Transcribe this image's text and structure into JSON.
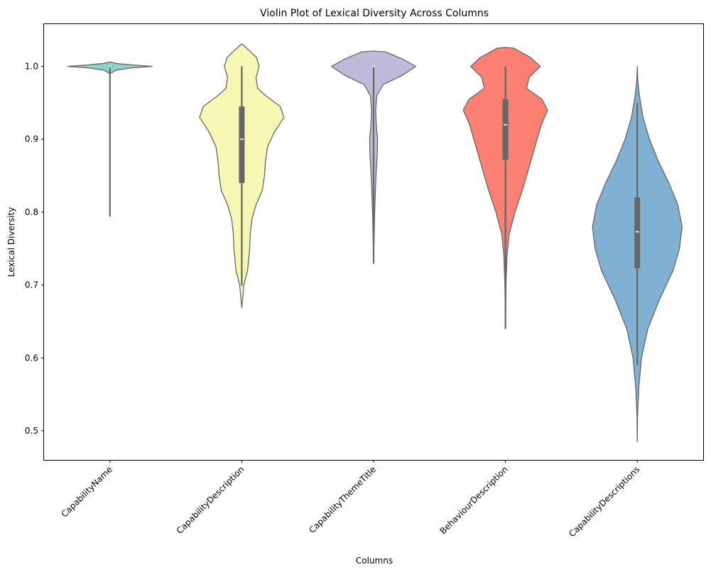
{
  "chart_data": {
    "type": "violin",
    "title": "Violin Plot of Lexical Diversity Across Columns",
    "xlabel": "Columns",
    "ylabel": "Lexical Diversity",
    "ylim": [
      0.46,
      1.058
    ],
    "yticks": [
      "0.5",
      "0.6",
      "0.7",
      "0.8",
      "0.9",
      "1.0"
    ],
    "grid": false,
    "categories": [
      "CapabilityName",
      "CapabilityDescription",
      "CapabilityThemeTitle",
      "BehaviourDescription",
      "CapabilityDescriptions"
    ],
    "series": [
      {
        "category": "CapabilityName",
        "color": "#8dd3c7",
        "min": 0.794,
        "q1": 1.0,
        "median": 1.0,
        "q3": 1.0,
        "max": 1.0,
        "density": [
          [
            0.99,
            0.002
          ],
          [
            0.995,
            0.12
          ],
          [
            0.998,
            0.42
          ],
          [
            1.0,
            0.8
          ],
          [
            1.002,
            0.42
          ],
          [
            1.004,
            0.12
          ],
          [
            1.006,
            0.002
          ]
        ]
      },
      {
        "category": "CapabilityDescription",
        "color": "#f7f7b4",
        "min": 0.699,
        "q1": 0.84,
        "median": 0.9,
        "q3": 0.945,
        "max": 1.0,
        "density": [
          [
            0.669,
            0.0
          ],
          [
            0.7,
            0.04
          ],
          [
            0.72,
            0.11
          ],
          [
            0.75,
            0.15
          ],
          [
            0.77,
            0.16
          ],
          [
            0.79,
            0.19
          ],
          [
            0.81,
            0.27
          ],
          [
            0.83,
            0.39
          ],
          [
            0.85,
            0.43
          ],
          [
            0.87,
            0.45
          ],
          [
            0.89,
            0.49
          ],
          [
            0.91,
            0.62
          ],
          [
            0.93,
            0.8
          ],
          [
            0.945,
            0.73
          ],
          [
            0.96,
            0.45
          ],
          [
            0.97,
            0.3
          ],
          [
            0.985,
            0.27
          ],
          [
            1.0,
            0.33
          ],
          [
            1.012,
            0.28
          ],
          [
            1.022,
            0.14
          ],
          [
            1.031,
            0.0
          ]
        ]
      },
      {
        "category": "CapabilityThemeTitle",
        "color": "#bebada",
        "min": 0.73,
        "q1": 1.0,
        "median": 1.0,
        "q3": 1.0,
        "max": 1.0,
        "density": [
          [
            0.729,
            0.0
          ],
          [
            0.75,
            0.005
          ],
          [
            0.8,
            0.02
          ],
          [
            0.85,
            0.045
          ],
          [
            0.88,
            0.07
          ],
          [
            0.9,
            0.075
          ],
          [
            0.92,
            0.05
          ],
          [
            0.94,
            0.04
          ],
          [
            0.96,
            0.06
          ],
          [
            0.975,
            0.18
          ],
          [
            0.988,
            0.55
          ],
          [
            1.0,
            0.8
          ],
          [
            1.01,
            0.55
          ],
          [
            1.02,
            0.22
          ],
          [
            1.021,
            0.0
          ]
        ]
      },
      {
        "category": "BehaviourDescription",
        "color": "#fb8072",
        "min": 0.64,
        "q1": 0.872,
        "median": 0.92,
        "q3": 0.955,
        "max": 1.0,
        "density": [
          [
            0.64,
            0.0
          ],
          [
            0.7,
            0.01
          ],
          [
            0.74,
            0.03
          ],
          [
            0.77,
            0.07
          ],
          [
            0.8,
            0.18
          ],
          [
            0.83,
            0.32
          ],
          [
            0.86,
            0.44
          ],
          [
            0.88,
            0.52
          ],
          [
            0.9,
            0.6
          ],
          [
            0.92,
            0.68
          ],
          [
            0.94,
            0.8
          ],
          [
            0.955,
            0.69
          ],
          [
            0.97,
            0.4
          ],
          [
            0.985,
            0.45
          ],
          [
            1.0,
            0.66
          ],
          [
            1.012,
            0.48
          ],
          [
            1.025,
            0.16
          ],
          [
            1.026,
            0.0
          ]
        ]
      },
      {
        "category": "CapabilityDescriptions",
        "color": "#80b1d3",
        "min": 0.59,
        "q1": 0.723,
        "median": 0.773,
        "q3": 0.82,
        "max": 0.95,
        "density": [
          [
            0.485,
            0.0
          ],
          [
            0.52,
            0.005
          ],
          [
            0.56,
            0.03
          ],
          [
            0.6,
            0.08
          ],
          [
            0.64,
            0.2
          ],
          [
            0.68,
            0.42
          ],
          [
            0.72,
            0.68
          ],
          [
            0.75,
            0.8
          ],
          [
            0.78,
            0.85
          ],
          [
            0.81,
            0.77
          ],
          [
            0.84,
            0.6
          ],
          [
            0.87,
            0.4
          ],
          [
            0.9,
            0.23
          ],
          [
            0.93,
            0.11
          ],
          [
            0.96,
            0.04
          ],
          [
            0.98,
            0.01
          ],
          [
            1.0,
            0.0
          ]
        ]
      }
    ]
  }
}
